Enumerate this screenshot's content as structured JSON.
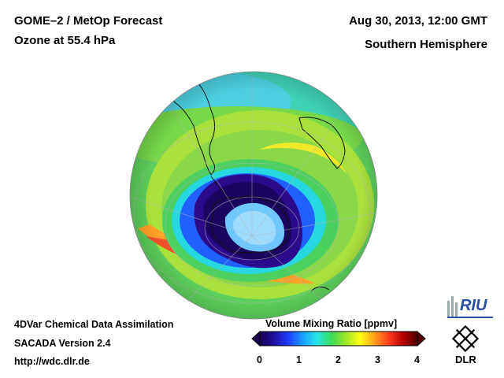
{
  "header": {
    "title_line1": "GOME–2 / MetOp Forecast",
    "title_line2": "Ozone at 55.4 hPa",
    "date": "Aug 30, 2013, 12:00 GMT",
    "region": "Southern Hemisphere"
  },
  "footer": {
    "line1": "4DVar Chemical Data Assimilation",
    "line2": "SACADA Version 2.4",
    "line3": "http://wdc.dlr.de"
  },
  "colorbar": {
    "label": "Volume Mixing Ratio [ppmv]",
    "ticks": [
      "0",
      "1",
      "2",
      "3",
      "4"
    ],
    "min": 0,
    "max": 4,
    "colors": [
      "#1a0050",
      "#2010a0",
      "#1e3cff",
      "#19a0ff",
      "#28e6e6",
      "#3cdc5a",
      "#a0e628",
      "#ffff14",
      "#ffa01e",
      "#ff3c1e",
      "#b40000",
      "#500000"
    ]
  },
  "logos": {
    "riu": "RIU",
    "dlr": "DLR"
  }
}
